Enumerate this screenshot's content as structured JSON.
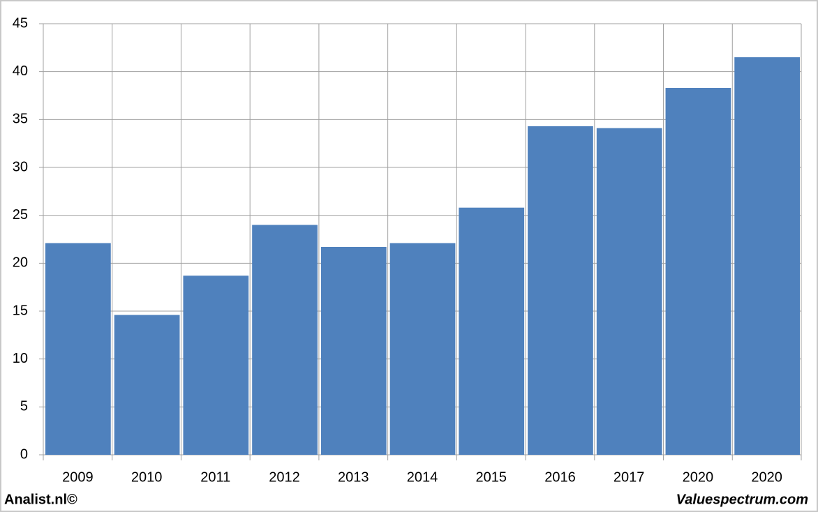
{
  "chart_data": {
    "type": "bar",
    "categories": [
      "2009",
      "2010",
      "2011",
      "2012",
      "2013",
      "2014",
      "2015",
      "2016",
      "2017",
      "2020",
      "2020"
    ],
    "values": [
      22.1,
      14.6,
      18.7,
      24.0,
      21.7,
      22.1,
      25.8,
      34.3,
      34.1,
      38.3,
      41.5
    ],
    "color": "#4f81bd",
    "ylim": [
      0,
      45
    ],
    "yticks": [
      0,
      5,
      10,
      15,
      20,
      25,
      30,
      35,
      40,
      45
    ],
    "grid": true,
    "source_left": "Analist.nl©",
    "source_right": "Valuespectrum.com"
  }
}
